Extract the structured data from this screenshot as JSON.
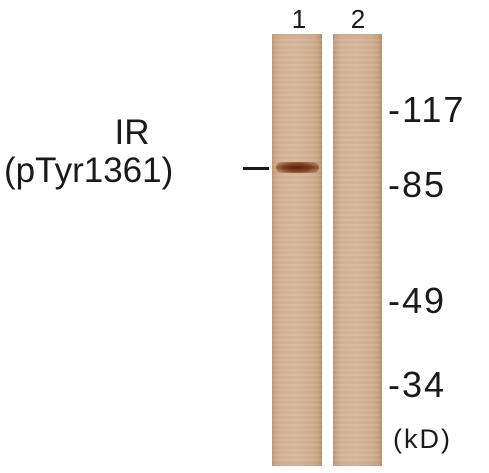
{
  "lanes": [
    {
      "label": "1",
      "band_present": true
    },
    {
      "label": "2",
      "band_present": false
    }
  ],
  "protein": {
    "line1": "IR",
    "line2": "(pTyr1361)"
  },
  "markers": [
    "-117",
    "-85",
    "-49",
    "-34"
  ],
  "unit": "(kD)",
  "colors": {
    "membrane": "#d6b596",
    "band": "#6a2d14",
    "text": "#1a1a1a"
  }
}
